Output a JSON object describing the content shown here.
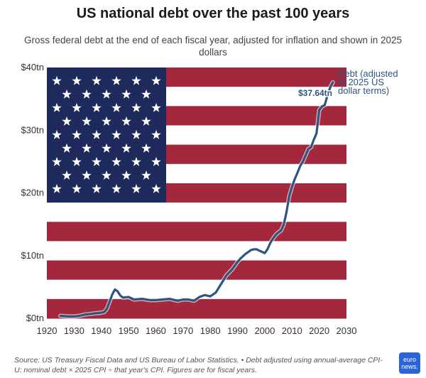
{
  "header": {
    "title": "US national debt over the past 100 years",
    "subtitle": "Gross federal debt at the end of each fiscal year, adjusted for inflation and shown in 2025 dollars"
  },
  "footer": {
    "source": "Source: US Treasury Fiscal Data and US Bureau of Labor Statistics. • Debt adjusted using annual-average CPI-U: nominal debt × 2025 CPI ÷ that year's CPI. Figures are for fiscal years.",
    "logo_text": "euro news."
  },
  "colors": {
    "line": "#2e557f",
    "stripe_red": "#a3273d",
    "canton_blue": "#1f2a5c",
    "stripe_white": "#ffffff"
  },
  "chart_data": {
    "type": "line",
    "title": "US national debt over the past 100 years",
    "subtitle": "Gross federal debt at the end of each fiscal year, adjusted for inflation and shown in 2025 dollars",
    "xlabel": "",
    "ylabel": "",
    "xlim": [
      1920,
      2030
    ],
    "ylim": [
      0,
      40
    ],
    "x_ticks": [
      1920,
      1930,
      1940,
      1950,
      1960,
      1970,
      1980,
      1990,
      2000,
      2010,
      2020,
      2030
    ],
    "y_ticks": [
      0,
      10,
      20,
      30,
      40
    ],
    "y_tick_labels": [
      "$0tn",
      "$10tn",
      "$20tn",
      "$30tn",
      "$40tn"
    ],
    "grid": false,
    "background": "US flag",
    "annotation": "$37.64tn",
    "series": [
      {
        "name": "Debt (adjusted to 2025 US dollar terms)",
        "x": [
          1925,
          1928,
          1930,
          1932,
          1934,
          1936,
          1938,
          1940,
          1941,
          1942,
          1943,
          1944,
          1945,
          1946,
          1947,
          1948,
          1950,
          1952,
          1955,
          1958,
          1960,
          1965,
          1968,
          1970,
          1972,
          1974,
          1976,
          1978,
          1980,
          1982,
          1984,
          1986,
          1988,
          1990,
          1991,
          1992,
          1993,
          1994,
          1995,
          1996,
          1997,
          1998,
          1999,
          2000,
          2001,
          2002,
          2003,
          2004,
          2005,
          2006,
          2007,
          2008,
          2009,
          2010,
          2011,
          2012,
          2013,
          2014,
          2015,
          2016,
          2017,
          2018,
          2019,
          2020,
          2021,
          2022,
          2023,
          2024,
          2025
        ],
        "values": [
          0.4,
          0.3,
          0.3,
          0.4,
          0.6,
          0.7,
          0.8,
          0.9,
          1.0,
          1.5,
          2.6,
          3.8,
          4.6,
          4.3,
          3.6,
          3.3,
          3.4,
          3.0,
          3.1,
          2.9,
          2.9,
          3.1,
          2.8,
          3.0,
          3.0,
          2.8,
          3.4,
          3.7,
          3.5,
          4.1,
          5.5,
          6.9,
          7.8,
          9.0,
          9.5,
          9.9,
          10.3,
          10.6,
          10.9,
          11.0,
          11.0,
          10.8,
          10.6,
          10.4,
          11.0,
          12.0,
          12.7,
          13.3,
          13.7,
          14.0,
          15.0,
          17.0,
          19.5,
          21.0,
          22.2,
          23.2,
          24.3,
          25.0,
          26.0,
          27.0,
          27.3,
          28.5,
          29.5,
          33.2,
          33.8,
          34.0,
          35.5,
          36.8,
          37.64
        ]
      }
    ]
  }
}
